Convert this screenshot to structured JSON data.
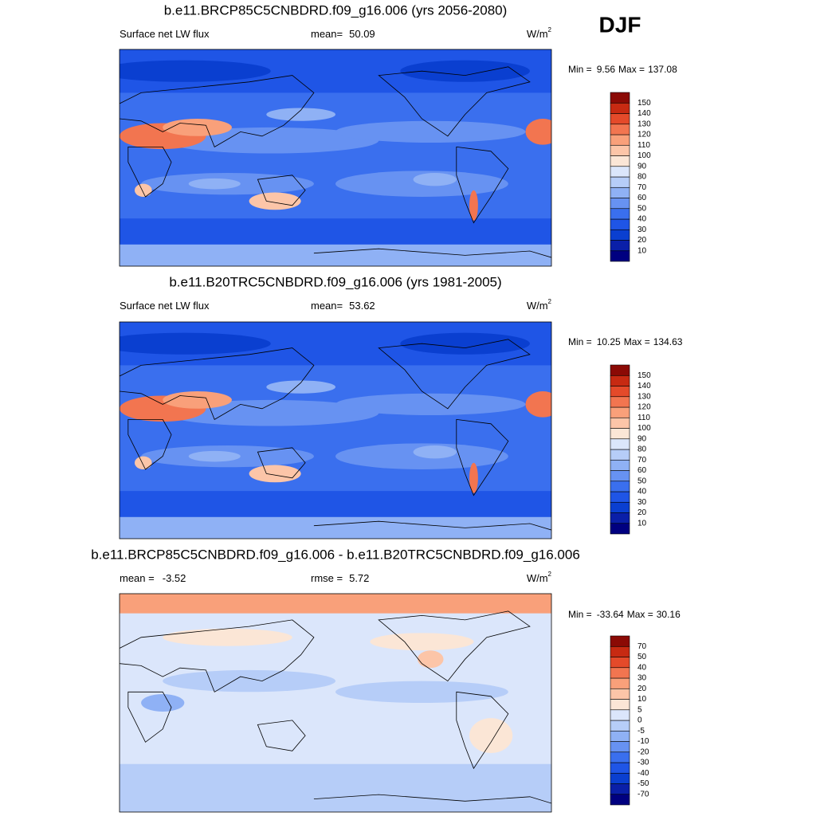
{
  "season": "DJF",
  "panels": [
    {
      "title": "b.e11.BRCP85C5CNBDRD.f09_g16.006 (yrs 2056-2080)",
      "left_label": "Surface net LW flux",
      "stat_label": "mean=",
      "stat_value": 50.09,
      "units": "W/m",
      "units_exp": "2",
      "min_label": "Min =",
      "min": 9.56,
      "max_label": "Max =",
      "max": 137.08,
      "colorbar": {
        "levels": [
          10,
          20,
          30,
          40,
          50,
          60,
          70,
          80,
          90,
          100,
          110,
          120,
          130,
          140,
          150
        ],
        "colors": [
          "#000080",
          "#0a1fa8",
          "#0a3fd0",
          "#1f55e6",
          "#3a6fee",
          "#6792f2",
          "#8fb1f5",
          "#b6cdf8",
          "#dbe6fb",
          "#fbe6d6",
          "#fcc5a8",
          "#f9a07a",
          "#f27550",
          "#e44a2a",
          "#c72a12",
          "#8b0a05"
        ]
      }
    },
    {
      "title": "b.e11.B20TRC5CNBDRD.f09_g16.006 (yrs 1981-2005)",
      "left_label": "Surface net LW flux",
      "stat_label": "mean=",
      "stat_value": 53.62,
      "units": "W/m",
      "units_exp": "2",
      "min_label": "Min =",
      "min": 10.25,
      "max_label": "Max =",
      "max": 134.63,
      "colorbar": {
        "levels": [
          10,
          20,
          30,
          40,
          50,
          60,
          70,
          80,
          90,
          100,
          110,
          120,
          130,
          140,
          150
        ],
        "colors": [
          "#000080",
          "#0a1fa8",
          "#0a3fd0",
          "#1f55e6",
          "#3a6fee",
          "#6792f2",
          "#8fb1f5",
          "#b6cdf8",
          "#dbe6fb",
          "#fbe6d6",
          "#fcc5a8",
          "#f9a07a",
          "#f27550",
          "#e44a2a",
          "#c72a12",
          "#8b0a05"
        ]
      }
    },
    {
      "title": "b.e11.BRCP85C5CNBDRD.f09_g16.006 - b.e11.B20TRC5CNBDRD.f09_g16.006",
      "left_label": "mean =",
      "left_value": -3.52,
      "stat_label": "rmse =",
      "stat_value": 5.72,
      "units": "W/m",
      "units_exp": "2",
      "min_label": "Min =",
      "min": -33.64,
      "max_label": "Max =",
      "max": 30.16,
      "colorbar": {
        "levels": [
          -70,
          -50,
          -40,
          -30,
          -20,
          -10,
          -5,
          0,
          5,
          10,
          20,
          30,
          40,
          50,
          70
        ],
        "colors": [
          "#000080",
          "#0a1fa8",
          "#0a3fd0",
          "#1f55e6",
          "#3a6fee",
          "#6792f2",
          "#8fb1f5",
          "#b6cdf8",
          "#dbe6fb",
          "#fbe6d6",
          "#fcc5a8",
          "#f9a07a",
          "#f27550",
          "#e44a2a",
          "#c72a12",
          "#8b0a05"
        ]
      }
    }
  ]
}
